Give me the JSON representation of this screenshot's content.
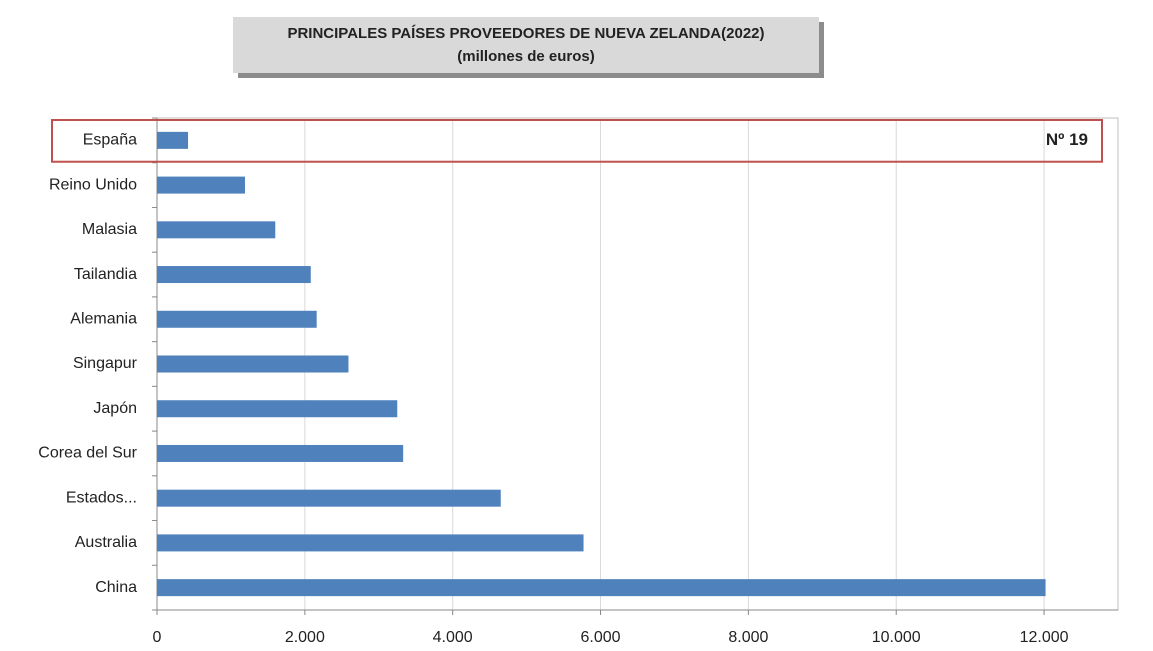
{
  "chart_data": {
    "type": "bar",
    "orientation": "horizontal",
    "title": "PRINCIPALES PAÍSES PROVEEDORES DE NUEVA ZELANDA(2022)",
    "subtitle": "(millones de euros)",
    "categories": [
      "España",
      "Reino Unido",
      "Malasia",
      "Tailandia",
      "Alemania",
      "Singapur",
      "Japón",
      "Corea del Sur",
      "Estados...",
      "Australia",
      "China"
    ],
    "values": [
      420,
      1190,
      1600,
      2080,
      2160,
      2590,
      3250,
      3330,
      4650,
      5770,
      12020
    ],
    "color": "#4f81bd",
    "xlim": [
      0,
      13000
    ],
    "xticks": [
      0,
      {
        "value": 2000,
        "label": "2.000"
      },
      {
        "value": 4000,
        "label": "4.000"
      },
      {
        "value": 6000,
        "label": "6.000"
      },
      {
        "value": 8000,
        "label": "8.000"
      },
      {
        "value": 10000,
        "label": "10.000"
      },
      {
        "value": 12000,
        "label": "12.000"
      }
    ],
    "grid": true,
    "annotation": "Nº 19"
  }
}
